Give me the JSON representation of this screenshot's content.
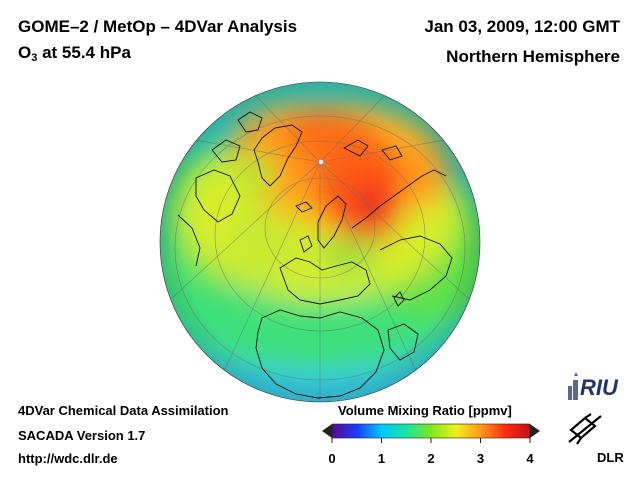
{
  "header": {
    "instrument": "GOME–2 / MetOp – 4DVar Analysis",
    "species_prefix": "O",
    "species_subscript": "3",
    "species_suffix": " at 55.4 hPa",
    "datetime": "Jan 03, 2009, 12:00 GMT",
    "region": "Northern Hemisphere"
  },
  "footer": {
    "line1": "4DVar Chemical Data Assimilation",
    "line2": "SACADA Version 1.7",
    "line3": "http://wdc.dlr.de"
  },
  "legend": {
    "title": "Volume Mixing Ratio [ppmv]",
    "ticks": [
      "0",
      "1",
      "2",
      "3",
      "4"
    ],
    "min": 0,
    "max": 4,
    "colors": [
      "#5a0a8c",
      "#1a3cff",
      "#00c8ff",
      "#18e6a0",
      "#7ee61e",
      "#f0f01a",
      "#ff9a1a",
      "#ff2d12",
      "#c0121a"
    ]
  },
  "map": {
    "projection": "orthographic",
    "center": "North Pole"
  },
  "logos": {
    "riu": "RIU",
    "dlr": "DLR"
  }
}
